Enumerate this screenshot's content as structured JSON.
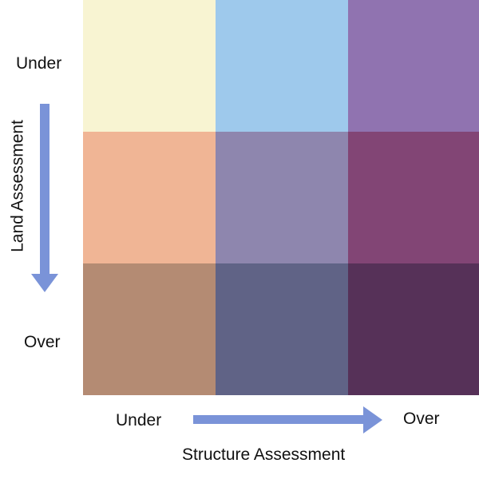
{
  "chart_data": {
    "type": "heatmap",
    "xlabel": "Structure Assessment",
    "ylabel": "Land Assessment",
    "x_categories": [
      "Under",
      "",
      "Over"
    ],
    "y_categories": [
      "Under",
      "",
      "Over"
    ],
    "colors": [
      [
        "#F8F4D2",
        "#9EC9EC",
        "#9073B0"
      ],
      [
        "#F0B595",
        "#8E86AE",
        "#824575"
      ],
      [
        "#B48B73",
        "#606386",
        "#563158"
      ]
    ],
    "arrow_color": "#7A93D8"
  }
}
